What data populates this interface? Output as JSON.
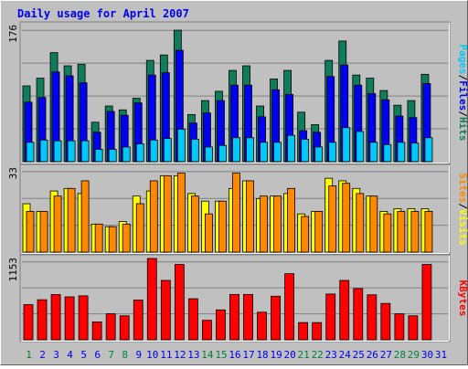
{
  "chart_data": [
    {
      "type": "bar",
      "title": "Daily usage for April 2007",
      "ymax_label": "176",
      "ylim": [
        0,
        176
      ],
      "categories": [
        "1",
        "2",
        "3",
        "4",
        "5",
        "6",
        "7",
        "8",
        "9",
        "10",
        "11",
        "12",
        "13",
        "14",
        "15",
        "16",
        "17",
        "18",
        "19",
        "20",
        "21",
        "22",
        "23",
        "24",
        "25",
        "26",
        "27",
        "28",
        "29",
        "30",
        "31"
      ],
      "weekend_days": [
        "1",
        "7",
        "8",
        "14",
        "15",
        "21",
        "22",
        "28",
        "29"
      ],
      "right_label_parts": [
        "Pages",
        "/",
        "Files",
        "/",
        "Hits"
      ],
      "series": [
        {
          "name": "Hits",
          "color": "#0f7c5a",
          "values": [
            98,
            108,
            141,
            124,
            126,
            51,
            72,
            67,
            82,
            131,
            138,
            170,
            61,
            79,
            91,
            118,
            124,
            72,
            107,
            118,
            64,
            48,
            131,
            156,
            112,
            108,
            92,
            73,
            79,
            113,
            0
          ]
        },
        {
          "name": "Files",
          "color": "#0000f0",
          "values": [
            77,
            83,
            116,
            111,
            102,
            38,
            65,
            60,
            76,
            112,
            115,
            144,
            50,
            63,
            79,
            99,
            99,
            58,
            93,
            87,
            40,
            38,
            110,
            125,
            99,
            88,
            80,
            59,
            57,
            101,
            0
          ]
        },
        {
          "name": "Pages",
          "color": "#00c8f8",
          "values": [
            25,
            28,
            27,
            27,
            27,
            16,
            16,
            19,
            23,
            28,
            30,
            42,
            29,
            19,
            21,
            31,
            31,
            25,
            25,
            34,
            29,
            19,
            25,
            44,
            39,
            25,
            22,
            25,
            24,
            31,
            0
          ]
        }
      ]
    },
    {
      "type": "bar",
      "ymax_label": "33",
      "ylim": [
        0,
        33
      ],
      "categories": [
        "1",
        "2",
        "3",
        "4",
        "5",
        "6",
        "7",
        "8",
        "9",
        "10",
        "11",
        "12",
        "13",
        "14",
        "15",
        "16",
        "17",
        "18",
        "19",
        "20",
        "21",
        "22",
        "23",
        "24",
        "25",
        "26",
        "27",
        "28",
        "29",
        "30",
        "31"
      ],
      "right_label_parts": [
        "Sites",
        "/",
        "Visits"
      ],
      "series": [
        {
          "name": "Visits",
          "color": "#ffff00",
          "values": [
            19,
            16,
            24,
            25,
            23,
            11,
            10,
            12,
            22,
            24,
            30,
            30,
            23,
            20,
            20,
            25,
            28,
            21,
            22,
            23,
            15,
            16,
            29,
            28,
            25,
            22,
            16,
            17,
            17,
            17,
            0
          ]
        },
        {
          "name": "Sites",
          "color": "#ff8800",
          "values": [
            16,
            16,
            22,
            25,
            28,
            11,
            10,
            11,
            19,
            28,
            30,
            31,
            22,
            15,
            20,
            31,
            28,
            22,
            22,
            25,
            14,
            16,
            26,
            27,
            23,
            22,
            15,
            16,
            16,
            16,
            0
          ]
        }
      ]
    },
    {
      "type": "bar",
      "ymax_label": "1153",
      "ylim": [
        0,
        1153
      ],
      "categories": [
        "1",
        "2",
        "3",
        "4",
        "5",
        "6",
        "7",
        "8",
        "9",
        "10",
        "11",
        "12",
        "13",
        "14",
        "15",
        "16",
        "17",
        "18",
        "19",
        "20",
        "21",
        "22",
        "23",
        "24",
        "25",
        "26",
        "27",
        "28",
        "29",
        "30",
        "31"
      ],
      "right_label_parts": [
        "KBytes"
      ],
      "series": [
        {
          "name": "KBytes",
          "color": "#ff0000",
          "values": [
            498,
            568,
            641,
            609,
            623,
            254,
            368,
            340,
            563,
            1153,
            842,
            1068,
            582,
            276,
            424,
            643,
            643,
            391,
            618,
            937,
            244,
            244,
            649,
            842,
            726,
            638,
            516,
            368,
            340,
            1068,
            0
          ]
        }
      ]
    }
  ],
  "colors": {
    "frame_bg": "#c0c0c0",
    "title": "#0000f0",
    "grid": "#808080",
    "weekday_label": "#0000f0",
    "weekend_label": "#008040"
  }
}
